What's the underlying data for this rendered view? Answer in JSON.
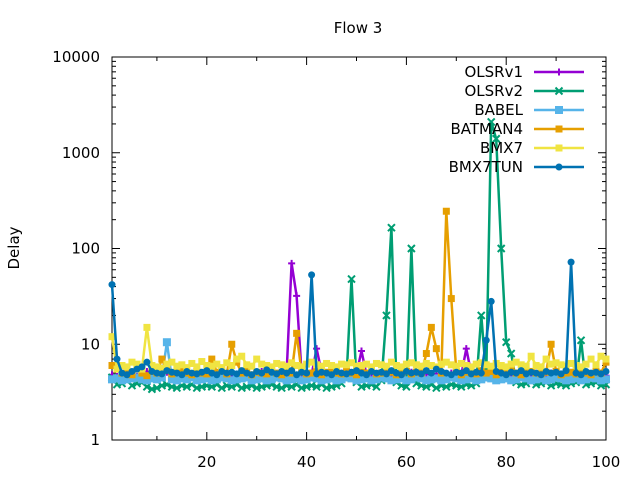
{
  "chart_data": {
    "type": "line",
    "title": "Flow 3",
    "xlabel": "",
    "ylabel": "Delay",
    "yscale": "log",
    "xlim": [
      1,
      100
    ],
    "ylim": [
      1,
      10000
    ],
    "x_ticks": [
      20,
      40,
      60,
      80,
      100
    ],
    "y_ticks": [
      1,
      10,
      100,
      1000,
      10000
    ],
    "grid": false,
    "legend_position": "top-right",
    "series": [
      {
        "name": "OLSRv1",
        "color": "#9400d3",
        "marker": "plus",
        "values": [
          4.8,
          4.6,
          4.5,
          4.7,
          5.0,
          4.6,
          4.9,
          5.2,
          4.7,
          4.5,
          4.8,
          5.1,
          4.6,
          4.9,
          5.0,
          4.7,
          4.5,
          4.8,
          5.0,
          4.6,
          4.7,
          4.9,
          5.1,
          4.8,
          4.6,
          4.7,
          5.0,
          4.8,
          4.5,
          4.9,
          5.2,
          4.7,
          4.8,
          4.6,
          4.9,
          5.0,
          70,
          32,
          5.0,
          4.7,
          4.8,
          9.0,
          5.1,
          4.6,
          4.9,
          4.8,
          5.0,
          4.7,
          4.6,
          4.9,
          8.5,
          4.8,
          5.0,
          4.7,
          4.6,
          4.8,
          5.0,
          4.7,
          4.9,
          4.8,
          5.1,
          4.6,
          4.8,
          5.0,
          4.7,
          4.9,
          4.8,
          4.6,
          5.0,
          4.7,
          4.8,
          9.0,
          4.9,
          5.1,
          4.7,
          4.8,
          4.6,
          4.9,
          5.0,
          4.7,
          4.8,
          4.6,
          4.9,
          5.0,
          4.7,
          4.8,
          4.9,
          4.6,
          5.0,
          4.8,
          4.7,
          4.9,
          5.0,
          4.6,
          4.8,
          4.7,
          4.9,
          5.0,
          4.8,
          4.7
        ]
      },
      {
        "name": "OLSRv2",
        "color": "#009e73",
        "marker": "cross",
        "values": [
          4.5,
          3.8,
          3.9,
          4.2,
          3.7,
          3.9,
          4.0,
          3.6,
          3.4,
          3.5,
          3.7,
          3.8,
          3.6,
          3.5,
          3.7,
          3.6,
          3.8,
          3.5,
          3.6,
          3.7,
          3.6,
          3.8,
          3.5,
          3.7,
          3.6,
          3.8,
          3.5,
          3.6,
          3.7,
          3.5,
          3.6,
          3.7,
          3.8,
          3.6,
          3.5,
          3.7,
          3.6,
          3.8,
          3.5,
          3.6,
          3.7,
          3.6,
          3.8,
          3.5,
          3.6,
          3.7,
          3.9,
          4.5,
          48,
          4.0,
          3.6,
          3.7,
          3.8,
          3.6,
          4.2,
          20,
          165,
          4.0,
          3.7,
          3.6,
          100,
          3.9,
          3.7,
          3.6,
          3.8,
          3.5,
          3.7,
          3.6,
          3.8,
          3.7,
          3.6,
          3.8,
          3.7,
          3.9,
          20,
          4.5,
          2100,
          1400,
          100,
          10.5,
          8.0,
          4.0,
          3.8,
          3.9,
          4.1,
          3.8,
          3.9,
          4.0,
          3.7,
          3.9,
          3.8,
          3.7,
          3.9,
          4.0,
          11,
          3.8,
          3.9,
          4.0,
          3.7,
          3.8
        ]
      },
      {
        "name": "BABEL",
        "color": "#56b4e9",
        "marker": "square",
        "values": [
          4.3,
          4.4,
          4.2,
          4.3,
          4.4,
          4.5,
          4.3,
          4.2,
          4.4,
          4.3,
          4.5,
          10.5,
          4.3,
          4.2,
          4.4,
          4.3,
          4.5,
          4.2,
          4.3,
          4.4,
          4.2,
          4.3,
          4.5,
          4.4,
          4.2,
          4.3,
          4.4,
          4.5,
          4.2,
          4.3,
          4.4,
          4.2,
          4.3,
          4.5,
          4.4,
          4.2,
          4.3,
          4.4,
          4.2,
          4.3,
          4.5,
          4.4,
          4.2,
          4.3,
          4.4,
          4.2,
          4.3,
          4.5,
          4.4,
          4.2,
          4.3,
          4.4,
          4.2,
          4.3,
          4.5,
          4.4,
          4.2,
          4.3,
          4.4,
          4.2,
          4.3,
          4.5,
          4.4,
          4.2,
          4.3,
          4.4,
          4.2,
          4.3,
          4.5,
          4.4,
          4.2,
          4.3,
          4.4,
          4.2,
          4.3,
          4.5,
          4.4,
          4.2,
          4.3,
          4.4,
          4.2,
          4.3,
          4.5,
          4.4,
          4.2,
          4.3,
          4.4,
          4.2,
          4.3,
          4.5,
          4.4,
          4.2,
          4.3,
          4.4,
          4.2,
          4.3,
          4.5,
          4.4,
          4.2,
          4.3
        ]
      },
      {
        "name": "BATMAN4",
        "color": "#e69f00",
        "marker": "filled-square",
        "values": [
          6.0,
          5.5,
          5.0,
          5.2,
          4.8,
          5.5,
          5.0,
          4.7,
          5.2,
          5.0,
          7.0,
          5.3,
          4.9,
          5.1,
          5.4,
          5.0,
          4.8,
          5.2,
          5.0,
          4.9,
          7.0,
          5.1,
          5.3,
          4.9,
          10.0,
          6.5,
          5.0,
          5.2,
          4.8,
          5.1,
          5.0,
          4.9,
          5.3,
          5.0,
          4.8,
          5.2,
          5.0,
          13.0,
          5.1,
          4.9,
          5.0,
          5.2,
          4.8,
          5.1,
          5.3,
          5.0,
          4.9,
          5.2,
          5.0,
          4.8,
          5.1,
          5.0,
          5.3,
          4.9,
          5.0,
          5.2,
          5.1,
          4.8,
          5.0,
          5.2,
          4.9,
          5.1,
          5.0,
          8.0,
          15.0,
          9.0,
          5.0,
          245,
          30,
          5.2,
          4.8,
          5.1,
          5.0,
          4.9,
          5.3,
          5.0,
          5.2,
          4.8,
          5.1,
          5.0,
          5.4,
          5.0,
          4.8,
          5.1,
          5.2,
          5.0,
          4.9,
          5.1,
          10.0,
          5.2,
          4.8,
          5.0,
          5.1,
          4.9,
          5.3,
          5.0,
          4.8,
          5.2,
          5.0,
          6.5
        ]
      },
      {
        "name": "BMX7",
        "color": "#f0e442",
        "marker": "filled-square",
        "values": [
          12.0,
          5.5,
          6.0,
          5.8,
          6.5,
          6.2,
          5.5,
          15.0,
          6.0,
          5.8,
          5.6,
          6.2,
          6.5,
          5.9,
          6.1,
          5.7,
          6.3,
          5.8,
          6.6,
          6.0,
          5.9,
          6.2,
          5.7,
          6.4,
          6.0,
          7.0,
          7.5,
          6.1,
          5.9,
          7.0,
          6.2,
          6.0,
          5.8,
          6.3,
          6.1,
          5.9,
          6.4,
          6.0,
          5.8,
          6.2,
          6.5,
          6.1,
          5.9,
          6.3,
          6.0,
          5.8,
          6.2,
          6.1,
          6.4,
          5.9,
          6.0,
          6.2,
          5.8,
          6.3,
          6.1,
          5.9,
          6.5,
          6.0,
          5.8,
          6.2,
          6.4,
          6.1,
          5.9,
          6.3,
          6.0,
          5.8,
          6.2,
          6.5,
          6.1,
          5.9,
          6.3,
          6.0,
          5.8,
          6.2,
          6.4,
          6.1,
          5.9,
          6.3,
          6.0,
          5.8,
          6.2,
          6.5,
          6.1,
          5.9,
          7.5,
          6.0,
          5.8,
          7.0,
          6.2,
          6.4,
          6.1,
          5.9,
          6.3,
          6.0,
          5.8,
          6.2,
          7.0,
          6.1,
          7.5,
          7.0
        ]
      },
      {
        "name": "BMX7TUN",
        "color": "#0072b2",
        "marker": "filled-circle",
        "values": [
          42,
          7.0,
          5.0,
          4.8,
          5.2,
          5.5,
          5.8,
          6.5,
          5.2,
          5.0,
          4.9,
          5.3,
          5.1,
          5.0,
          4.8,
          5.2,
          5.0,
          4.9,
          5.1,
          5.3,
          5.0,
          4.8,
          5.2,
          5.0,
          5.1,
          4.9,
          5.3,
          5.0,
          4.8,
          5.2,
          5.0,
          5.4,
          5.1,
          4.9,
          5.2,
          5.0,
          5.3,
          4.8,
          5.1,
          5.0,
          53,
          4.9,
          5.1,
          5.0,
          4.8,
          5.2,
          5.0,
          4.9,
          5.1,
          5.3,
          5.0,
          4.8,
          5.2,
          5.0,
          5.1,
          4.9,
          5.3,
          5.0,
          4.8,
          5.2,
          5.0,
          5.1,
          4.9,
          5.3,
          5.0,
          5.5,
          5.2,
          5.0,
          4.8,
          5.1,
          5.0,
          5.3,
          4.9,
          5.1,
          5.0,
          11,
          28,
          5.2,
          5.0,
          4.8,
          5.1,
          5.0,
          5.3,
          4.9,
          5.1,
          5.0,
          4.8,
          5.2,
          5.0,
          5.1,
          4.9,
          5.3,
          72,
          5.0,
          4.8,
          5.2,
          5.0,
          5.1,
          4.9,
          5.2
        ]
      }
    ]
  }
}
